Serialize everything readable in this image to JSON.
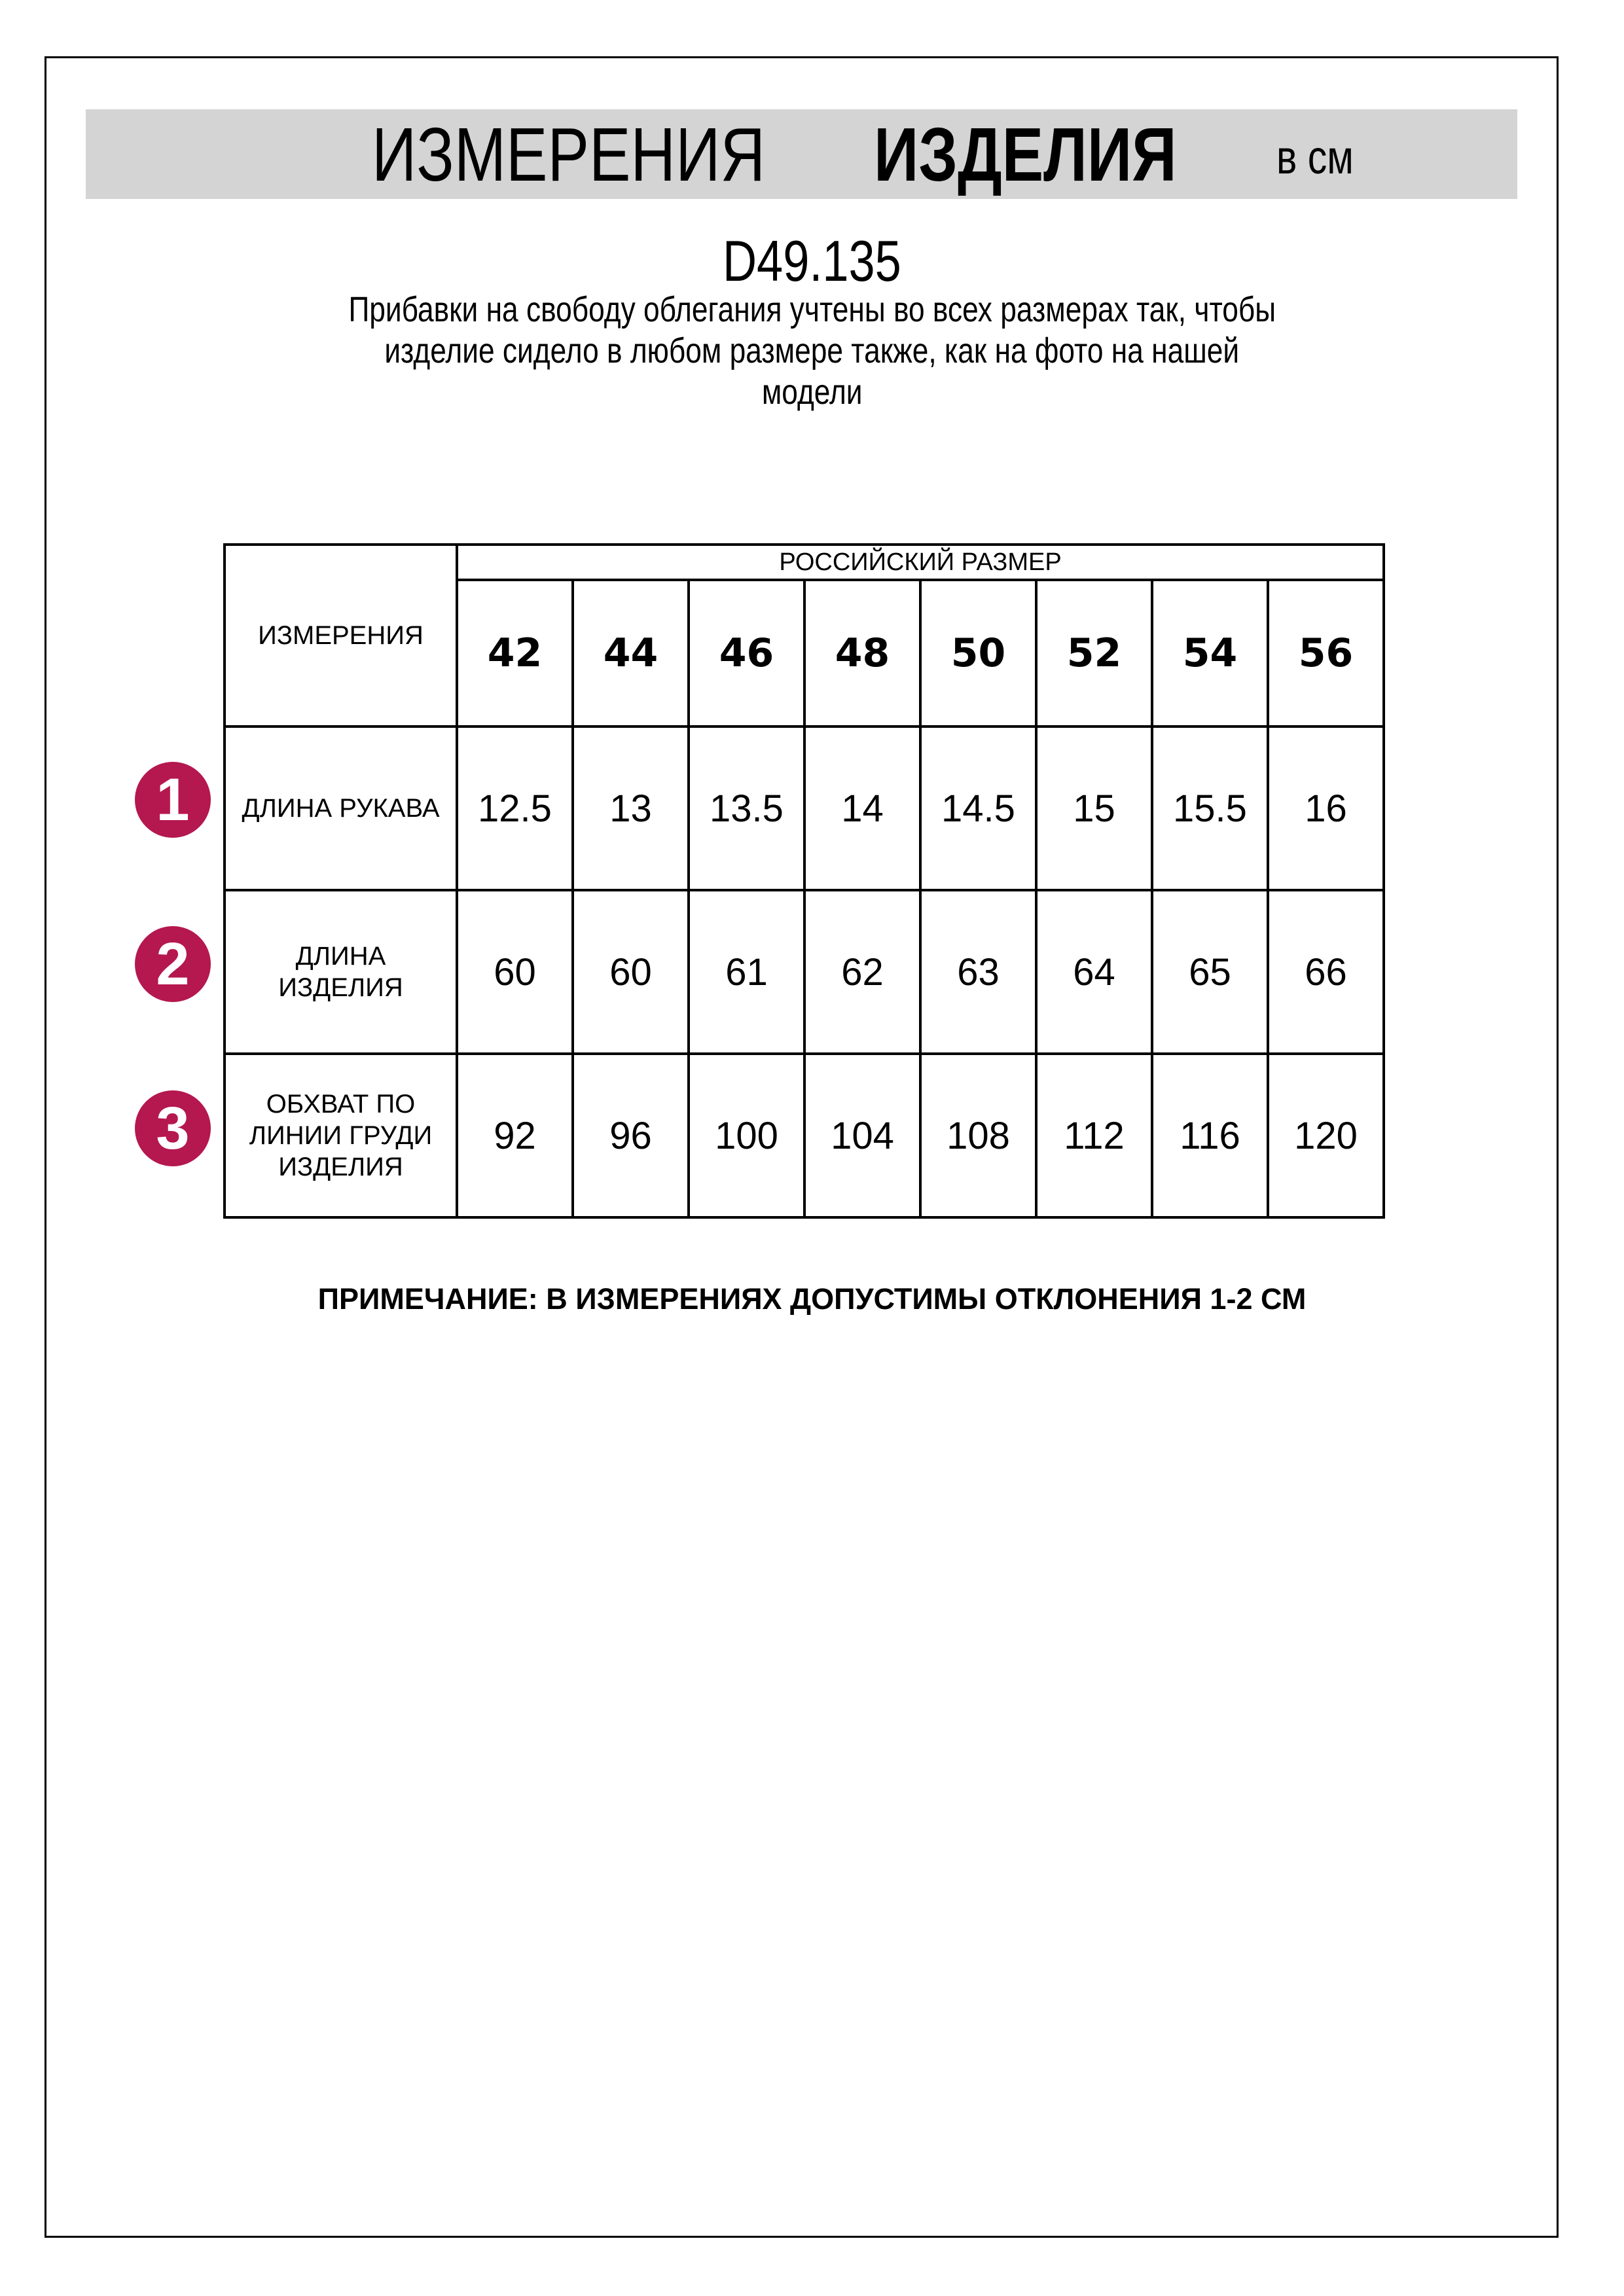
{
  "header": {
    "title_regular": "ИЗМЕРЕНИЯ",
    "title_bold": "ИЗДЕЛИЯ",
    "unit": "в см"
  },
  "product_code": "D49.135",
  "description_lines": [
    "Прибавки на свободу облегания учтены во всех размерах так, чтобы",
    "изделие сидело в любом размере также, как на фото на нашей",
    "модели"
  ],
  "table": {
    "measure_header": "ИЗМЕРЕНИЯ",
    "size_group_header": "РОССИЙСКИЙ РАЗМЕР",
    "sizes": [
      "42",
      "44",
      "46",
      "48",
      "50",
      "52",
      "54",
      "56"
    ],
    "rows": [
      {
        "badge": "1",
        "label": [
          "ДЛИНА РУКАВА"
        ],
        "values": [
          "12.5",
          "13",
          "13.5",
          "14",
          "14.5",
          "15",
          "15.5",
          "16"
        ]
      },
      {
        "badge": "2",
        "label": [
          "ДЛИНА",
          "ИЗДЕЛИЯ"
        ],
        "values": [
          "60",
          "60",
          "61",
          "62",
          "63",
          "64",
          "65",
          "66"
        ]
      },
      {
        "badge": "3",
        "label": [
          "ОБХВАТ ПО",
          "ЛИНИИ ГРУДИ",
          "ИЗДЕЛИЯ"
        ],
        "values": [
          "92",
          "96",
          "100",
          "104",
          "108",
          "112",
          "116",
          "120"
        ]
      }
    ]
  },
  "note": "ПРИМЕЧАНИЕ: В ИЗМЕРЕНИЯХ ДОПУСТИМЫ ОТКЛОНЕНИЯ 1-2 СМ",
  "colors": {
    "badge": "#b5174f",
    "band": "#d4d4d4"
  }
}
